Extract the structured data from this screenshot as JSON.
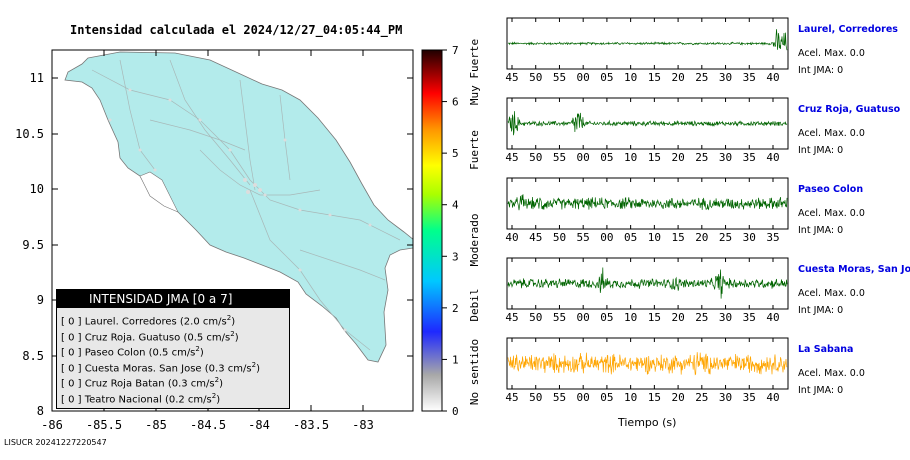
{
  "map": {
    "title": "Intensidad calculada el 2024/12/27_04:05:44_PM",
    "footer": "LISUCR 20241227220547",
    "land_color": "#b3ebeb",
    "x_ticks": [
      "-86",
      "-85.5",
      "-85",
      "-84.5",
      "-84",
      "-83.5",
      "-83"
    ],
    "y_ticks": [
      "11",
      "10.5",
      "10",
      "9.5",
      "9",
      "8.5",
      "8"
    ],
    "legend": {
      "title": "INTENSIDAD JMA [0 a 7]",
      "items": [
        {
          "jma": "[ 0 ]",
          "name": "Laurel. Corredores",
          "accel": "(2.0 cm/s",
          "sup": "2",
          "close": ")"
        },
        {
          "jma": "[ 0 ]",
          "name": "Cruz Roja. Guatuso",
          "accel": "(0.5 cm/s",
          "sup": "2",
          "close": ")"
        },
        {
          "jma": "[ 0 ]",
          "name": "Paseo Colon",
          "accel": "(0.5 cm/s",
          "sup": "2",
          "close": ")"
        },
        {
          "jma": "[ 0 ]",
          "name": "Cuesta Moras. San Jose",
          "accel": "(0.3 cm/s",
          "sup": "2",
          "close": ")"
        },
        {
          "jma": "[ 0 ]",
          "name": "Cruz Roja Batan",
          "accel": "(0.3 cm/s",
          "sup": "2",
          "close": ")"
        },
        {
          "jma": "[ 0 ]",
          "name": "Teatro Nacional",
          "accel": "(0.2 cm/s",
          "sup": "2",
          "close": ")"
        }
      ]
    }
  },
  "colorbar": {
    "ticks": [
      "0",
      "1",
      "2",
      "3",
      "4",
      "5",
      "6",
      "7"
    ],
    "labels": [
      "No sentido",
      "Debil",
      "Moderado",
      "Fuerte",
      "Muy Fuerte"
    ],
    "colors": [
      "#ffffff",
      "#b4b4b4",
      "#0000ff",
      "#00c8ff",
      "#00ff96",
      "#ffff00",
      "#ff8c00",
      "#ff0000",
      "#000000"
    ]
  },
  "chart_data": {
    "type": "line",
    "xlabel": "Tiempo (s)",
    "stations": [
      {
        "name": "Laurel, Corredores",
        "accel_label": "Acel. Max. 0.0",
        "int_label": "Int JMA: 0",
        "color": "#006400",
        "ticks": [
          "45",
          "50",
          "55",
          "00",
          "05",
          "10",
          "15",
          "20",
          "25",
          "30",
          "35",
          "40"
        ],
        "amplitude": 0.06,
        "bursts": [
          {
            "t": 0.97,
            "a": 0.9
          },
          {
            "t": 0.99,
            "a": 0.7
          }
        ]
      },
      {
        "name": "Cruz Roja, Guatuso",
        "accel_label": "Acel. Max. 0.0",
        "int_label": "Int JMA: 0",
        "color": "#006400",
        "ticks": [
          "45",
          "50",
          "55",
          "00",
          "05",
          "10",
          "15",
          "20",
          "25",
          "30",
          "35",
          "40"
        ],
        "amplitude": 0.12,
        "bursts": [
          {
            "t": 0.02,
            "a": 0.8
          },
          {
            "t": 0.25,
            "a": 0.95
          }
        ]
      },
      {
        "name": "Paseo Colon",
        "accel_label": "Acel. Max. 0.0",
        "int_label": "Int JMA: 0",
        "color": "#006400",
        "ticks": [
          "40",
          "45",
          "50",
          "55",
          "00",
          "05",
          "10",
          "15",
          "20",
          "25",
          "30",
          "35"
        ],
        "amplitude": 0.3,
        "bursts": [
          {
            "t": 0.05,
            "a": 0.6
          },
          {
            "t": 0.12,
            "a": 0.55
          },
          {
            "t": 0.97,
            "a": 0.45
          }
        ]
      },
      {
        "name": "Cuesta Moras, San Jose",
        "accel_label": "Acel. Max. 0.0",
        "int_label": "Int JMA: 0",
        "color": "#006400",
        "ticks": [
          "45",
          "50",
          "55",
          "00",
          "05",
          "10",
          "15",
          "20",
          "25",
          "30",
          "35",
          "40"
        ],
        "amplitude": 0.25,
        "bursts": [
          {
            "t": 0.34,
            "a": 0.75
          },
          {
            "t": 0.6,
            "a": 0.55
          },
          {
            "t": 0.76,
            "a": 0.95
          }
        ]
      },
      {
        "name": "La Sabana",
        "accel_label": "Acel. Max. 0.0",
        "int_label": "Int JMA: 0",
        "color": "#ffa500",
        "ticks": [
          "45",
          "50",
          "55",
          "00",
          "05",
          "10",
          "15",
          "20",
          "25",
          "30",
          "35",
          "40"
        ],
        "amplitude": 0.5,
        "bursts": [
          {
            "t": 0.68,
            "a": 0.95
          },
          {
            "t": 0.73,
            "a": 0.85
          }
        ]
      }
    ]
  }
}
